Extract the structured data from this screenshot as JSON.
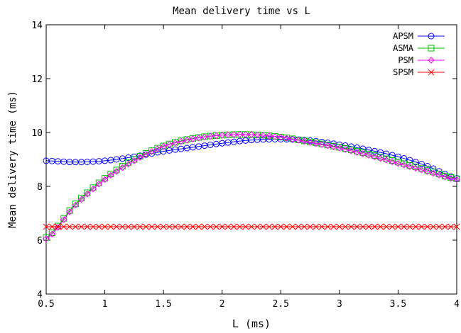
{
  "chart_data": {
    "type": "line",
    "title": "Mean delivery time vs L",
    "xlabel": "L (ms)",
    "ylabel": "Mean delivery time (ms)",
    "xlim": [
      0.5,
      4
    ],
    "ylim": [
      4,
      14
    ],
    "xticks": [
      0.5,
      1,
      1.5,
      2,
      2.5,
      3,
      3.5,
      4
    ],
    "yticks": [
      4,
      6,
      8,
      10,
      12,
      14
    ],
    "xtick_labels": [
      "0.5",
      "1",
      "1.5",
      "2",
      "2.5",
      "3",
      "3.5",
      "4"
    ],
    "ytick_labels": [
      "4",
      "6",
      "8",
      "10",
      "12",
      "14"
    ],
    "grid": false,
    "legend_position": "top-right",
    "x": [
      0.5,
      0.75,
      1.0,
      1.25,
      1.5,
      1.75,
      2.0,
      2.25,
      2.5,
      2.75,
      3.0,
      3.25,
      3.5,
      3.75,
      4.0
    ],
    "series": [
      {
        "name": "APSM",
        "color": "#0000ff",
        "marker": "circle",
        "values": [
          8.95,
          8.9,
          8.95,
          9.1,
          9.3,
          9.45,
          9.6,
          9.72,
          9.75,
          9.7,
          9.55,
          9.35,
          9.1,
          8.75,
          8.3
        ]
      },
      {
        "name": "ASMA",
        "color": "#00c000",
        "marker": "square",
        "values": [
          6.1,
          7.35,
          8.3,
          9.0,
          9.5,
          9.78,
          9.9,
          9.92,
          9.83,
          9.65,
          9.45,
          9.2,
          8.9,
          8.6,
          8.28
        ]
      },
      {
        "name": "PSM",
        "color": "#ff00ff",
        "marker": "diamond",
        "values": [
          6.05,
          7.3,
          8.25,
          8.95,
          9.48,
          9.76,
          9.9,
          9.92,
          9.82,
          9.63,
          9.42,
          9.15,
          8.85,
          8.55,
          8.25
        ]
      },
      {
        "name": "SPSM",
        "color": "#ff0000",
        "marker": "x",
        "values": [
          6.5,
          6.5,
          6.5,
          6.5,
          6.5,
          6.5,
          6.5,
          6.5,
          6.5,
          6.5,
          6.5,
          6.5,
          6.5,
          6.5,
          6.5
        ]
      }
    ]
  }
}
